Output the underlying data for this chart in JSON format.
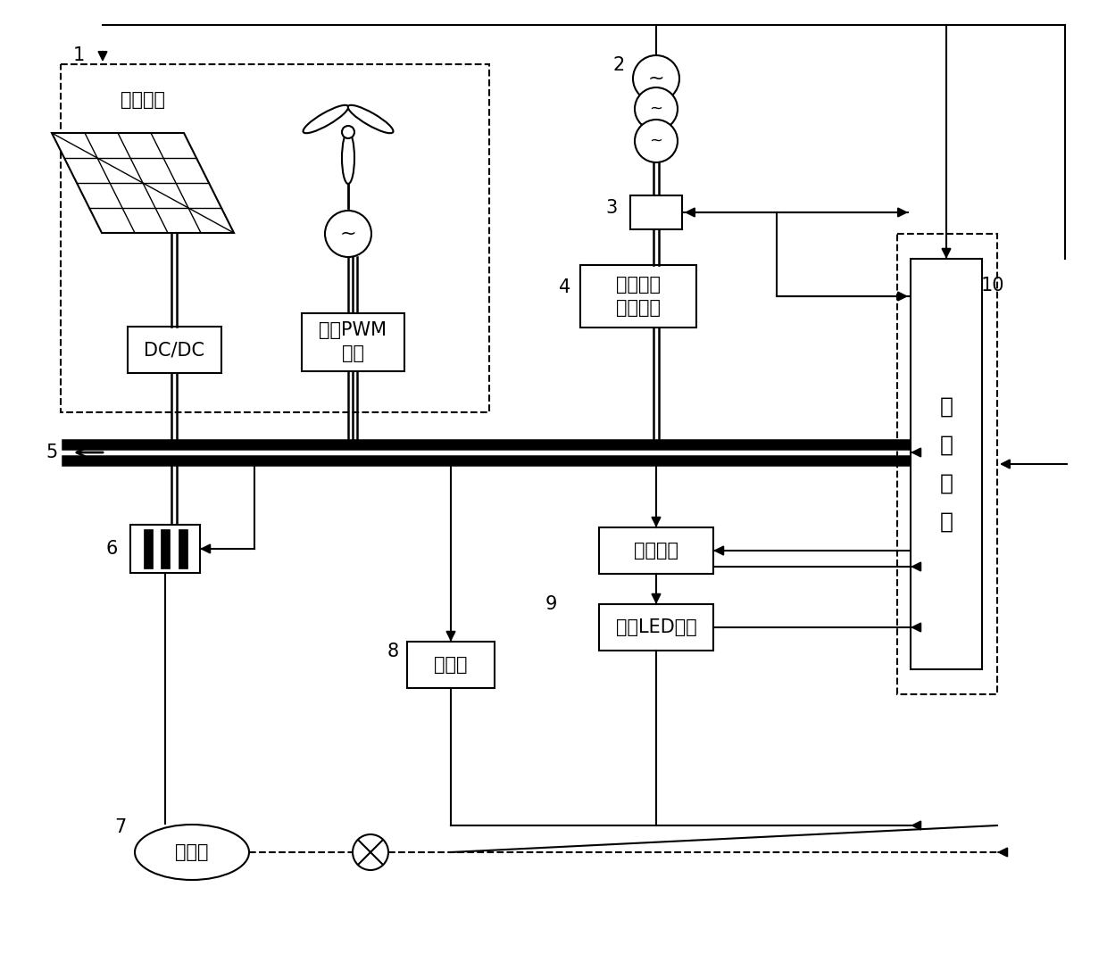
{
  "bg_color": "#ffffff",
  "labels": {
    "pv_label": "光伏组件",
    "dc_dc": "DC/DC",
    "three_phase": "三相PWM\n整流",
    "bidirectional": "双向电能\n转换模块",
    "constant_current": "恒流模块",
    "led_light": "城市LED路灯",
    "charging_pile": "充电桩",
    "hydrogen_tank": "储氢罐",
    "control_module": "控\n制\n模\n块",
    "num1": "1",
    "num2": "2",
    "num3": "3",
    "num4": "4",
    "num5": "5",
    "num6": "6",
    "num7": "7",
    "num8": "8",
    "num9": "9",
    "num10": "10"
  },
  "font_size": 15,
  "ctrl_font_size": 18
}
